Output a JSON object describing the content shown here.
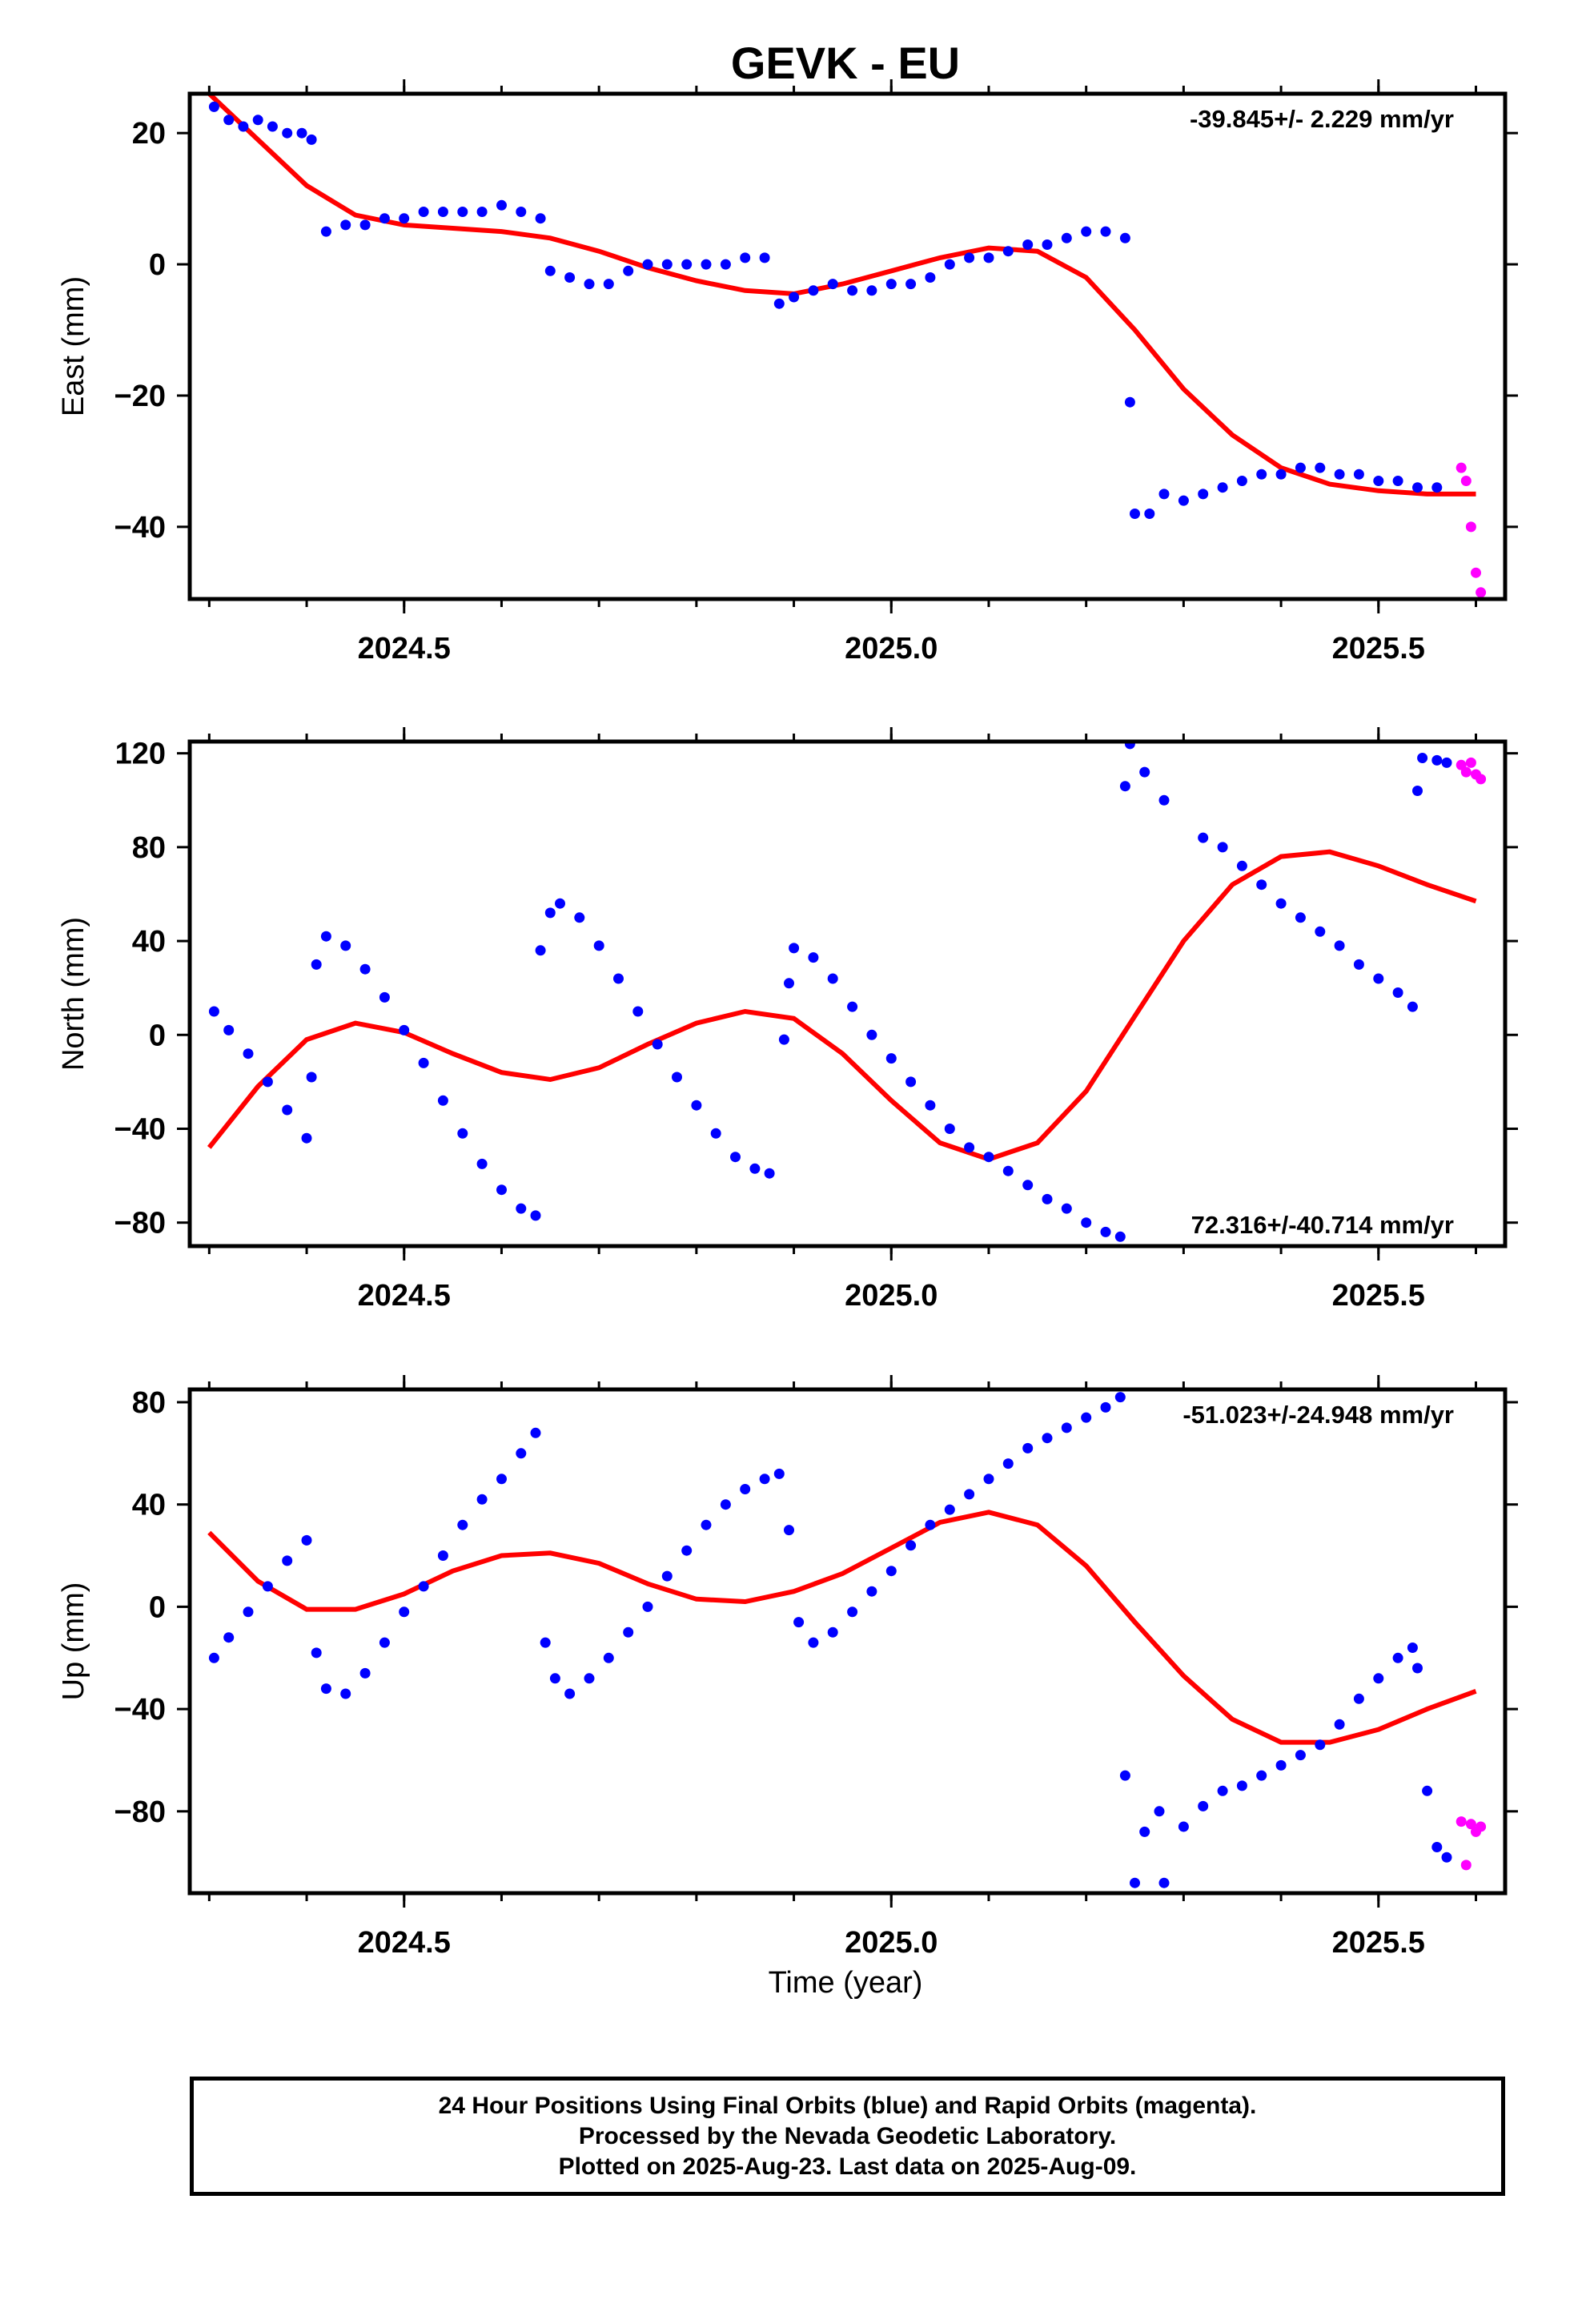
{
  "title": "GEVK - EU",
  "xlabel": "Time (year)",
  "footer": {
    "line1": "24 Hour Positions Using Final Orbits (blue) and Rapid Orbits (magenta).",
    "line2": "Processed by the Nevada Geodetic Laboratory.",
    "line3": "Plotted on 2025-Aug-23. Last data on 2025-Aug-09."
  },
  "colors": {
    "final": "#0000ff",
    "rapid": "#ff00ff",
    "fit": "#ff0000"
  },
  "chart_data": [
    {
      "type": "scatter",
      "ylabel": "East (mm)",
      "rate": "-39.845+/- 2.229 mm/yr",
      "xlim": [
        2024.28,
        2025.63
      ],
      "ylim": [
        -51,
        26
      ],
      "xticks": [
        2024.5,
        2025.0,
        2025.5
      ],
      "xtick_labels": [
        "2024.5",
        "2025.0",
        "2025.5"
      ],
      "yticks": [
        20,
        0,
        -20,
        -40
      ],
      "ytick_labels": [
        "20",
        "0",
        "−20",
        "−40"
      ],
      "series": [
        {
          "role": "final",
          "x": [
            2024.305,
            2024.32,
            2024.335,
            2024.35,
            2024.365,
            2024.38,
            2024.395,
            2024.405,
            2024.42,
            2024.44,
            2024.46,
            2024.48,
            2024.5,
            2024.52,
            2024.54,
            2024.56,
            2024.58,
            2024.6,
            2024.62,
            2024.64,
            2024.65,
            2024.67,
            2024.69,
            2024.71,
            2024.73,
            2024.75,
            2024.77,
            2024.79,
            2024.81,
            2024.83,
            2024.85,
            2024.87,
            2024.885,
            2024.9,
            2024.92,
            2024.94,
            2024.96,
            2024.98,
            2025.0,
            2025.02,
            2025.04,
            2025.06,
            2025.08,
            2025.1,
            2025.12,
            2025.14,
            2025.16,
            2025.18,
            2025.2,
            2025.22,
            2025.24,
            2025.245,
            2025.25,
            2025.265,
            2025.28,
            2025.3,
            2025.32,
            2025.34,
            2025.36,
            2025.38,
            2025.4,
            2025.42,
            2025.44,
            2025.46,
            2025.48,
            2025.5,
            2025.52,
            2025.54,
            2025.56
          ],
          "y": [
            24,
            22,
            21,
            22,
            21,
            20,
            20,
            19,
            5,
            6,
            6,
            7,
            7,
            8,
            8,
            8,
            8,
            9,
            8,
            7,
            -1,
            -2,
            -3,
            -3,
            -1,
            0,
            0,
            0,
            0,
            0,
            1,
            1,
            -6,
            -5,
            -4,
            -3,
            -4,
            -4,
            -3,
            -3,
            -2,
            0,
            1,
            1,
            2,
            3,
            3,
            4,
            5,
            5,
            4,
            -21,
            -38,
            -38,
            -35,
            -36,
            -35,
            -34,
            -33,
            -32,
            -32,
            -31,
            -31,
            -32,
            -32,
            -33,
            -33,
            -34,
            -34
          ]
        },
        {
          "role": "rapid",
          "x": [
            2025.585,
            2025.59,
            2025.595,
            2025.6,
            2025.605
          ],
          "y": [
            -31,
            -33,
            -40,
            -47,
            -50
          ]
        },
        {
          "role": "fit",
          "x": [
            2024.3,
            2024.35,
            2024.4,
            2024.45,
            2024.5,
            2024.55,
            2024.6,
            2024.65,
            2024.7,
            2024.75,
            2024.8,
            2024.85,
            2024.9,
            2024.95,
            2025.0,
            2025.05,
            2025.1,
            2025.15,
            2025.2,
            2025.25,
            2025.3,
            2025.35,
            2025.4,
            2025.45,
            2025.5,
            2025.55,
            2025.6
          ],
          "y": [
            26,
            19,
            12,
            7.5,
            6,
            5.5,
            5,
            4,
            2,
            -0.5,
            -2.5,
            -4,
            -4.5,
            -3,
            -1,
            1,
            2.5,
            2,
            -2,
            -10,
            -19,
            -26,
            -31,
            -33.5,
            -34.5,
            -35,
            -35
          ]
        }
      ]
    },
    {
      "type": "scatter",
      "ylabel": "North (mm)",
      "rate": "72.316+/-40.714 mm/yr",
      "xlim": [
        2024.28,
        2025.63
      ],
      "ylim": [
        -90,
        125
      ],
      "xticks": [
        2024.5,
        2025.0,
        2025.5
      ],
      "xtick_labels": [
        "2024.5",
        "2025.0",
        "2025.5"
      ],
      "yticks": [
        120,
        80,
        40,
        0,
        -40,
        -80
      ],
      "ytick_labels": [
        "120",
        "80",
        "40",
        "0",
        "−40",
        "−80"
      ],
      "series": [
        {
          "role": "final",
          "x": [
            2024.305,
            2024.32,
            2024.34,
            2024.36,
            2024.38,
            2024.4,
            2024.405,
            2024.41,
            2024.42,
            2024.44,
            2024.46,
            2024.48,
            2024.5,
            2024.52,
            2024.54,
            2024.56,
            2024.58,
            2024.6,
            2024.62,
            2024.635,
            2024.64,
            2024.65,
            2024.66,
            2024.68,
            2024.7,
            2024.72,
            2024.74,
            2024.76,
            2024.78,
            2024.8,
            2024.82,
            2024.84,
            2024.86,
            2024.875,
            2024.89,
            2024.895,
            2024.9,
            2024.92,
            2024.94,
            2024.96,
            2024.98,
            2025.0,
            2025.02,
            2025.04,
            2025.06,
            2025.08,
            2025.1,
            2025.12,
            2025.14,
            2025.16,
            2025.18,
            2025.2,
            2025.22,
            2025.235,
            2025.24,
            2025.245,
            2025.26,
            2025.28,
            2025.32,
            2025.34,
            2025.36,
            2025.38,
            2025.4,
            2025.42,
            2025.44,
            2025.46,
            2025.48,
            2025.5,
            2025.52,
            2025.535,
            2025.54,
            2025.545,
            2025.56,
            2025.57
          ],
          "y": [
            10,
            2,
            -8,
            -20,
            -32,
            -44,
            -18,
            30,
            42,
            38,
            28,
            16,
            2,
            -12,
            -28,
            -42,
            -55,
            -66,
            -74,
            -77,
            36,
            52,
            56,
            50,
            38,
            24,
            10,
            -4,
            -18,
            -30,
            -42,
            -52,
            -57,
            -59,
            -2,
            22,
            37,
            33,
            24,
            12,
            0,
            -10,
            -20,
            -30,
            -40,
            -48,
            -52,
            -58,
            -64,
            -70,
            -74,
            -80,
            -84,
            -86,
            106,
            124,
            112,
            100,
            84,
            80,
            72,
            64,
            56,
            50,
            44,
            38,
            30,
            24,
            18,
            12,
            104,
            118,
            117,
            116
          ]
        },
        {
          "role": "rapid",
          "x": [
            2025.585,
            2025.59,
            2025.595,
            2025.6,
            2025.605
          ],
          "y": [
            115,
            112,
            116,
            111,
            109
          ]
        },
        {
          "role": "fit",
          "x": [
            2024.3,
            2024.35,
            2024.4,
            2024.45,
            2024.5,
            2024.55,
            2024.6,
            2024.65,
            2024.7,
            2024.75,
            2024.8,
            2024.85,
            2024.9,
            2024.95,
            2025.0,
            2025.05,
            2025.1,
            2025.15,
            2025.2,
            2025.25,
            2025.3,
            2025.35,
            2025.4,
            2025.45,
            2025.5,
            2025.55,
            2025.6
          ],
          "y": [
            -48,
            -22,
            -2,
            5,
            1,
            -8,
            -16,
            -19,
            -14,
            -4,
            5,
            10,
            7,
            -8,
            -28,
            -46,
            -53,
            -46,
            -24,
            8,
            40,
            64,
            76,
            78,
            72,
            64,
            57
          ]
        }
      ]
    },
    {
      "type": "scatter",
      "ylabel": "Up (mm)",
      "rate": "-51.023+/-24.948 mm/yr",
      "xlim": [
        2024.28,
        2025.63
      ],
      "ylim": [
        -112,
        85
      ],
      "xticks": [
        2024.5,
        2025.0,
        2025.5
      ],
      "xtick_labels": [
        "2024.5",
        "2025.0",
        "2025.5"
      ],
      "yticks": [
        80,
        40,
        0,
        -40,
        -80
      ],
      "ytick_labels": [
        "80",
        "40",
        "0",
        "−40",
        "−80"
      ],
      "series": [
        {
          "role": "final",
          "x": [
            2024.305,
            2024.32,
            2024.34,
            2024.36,
            2024.38,
            2024.4,
            2024.41,
            2024.42,
            2024.44,
            2024.46,
            2024.48,
            2024.5,
            2024.52,
            2024.54,
            2024.56,
            2024.58,
            2024.6,
            2024.62,
            2024.635,
            2024.645,
            2024.655,
            2024.67,
            2024.69,
            2024.71,
            2024.73,
            2024.75,
            2024.77,
            2024.79,
            2024.81,
            2024.83,
            2024.85,
            2024.87,
            2024.885,
            2024.895,
            2024.905,
            2024.92,
            2024.94,
            2024.96,
            2024.98,
            2025.0,
            2025.02,
            2025.04,
            2025.06,
            2025.08,
            2025.1,
            2025.12,
            2025.14,
            2025.16,
            2025.18,
            2025.2,
            2025.22,
            2025.235,
            2025.24,
            2025.25,
            2025.26,
            2025.275,
            2025.28,
            2025.3,
            2025.32,
            2025.34,
            2025.36,
            2025.38,
            2025.4,
            2025.42,
            2025.44,
            2025.46,
            2025.48,
            2025.5,
            2025.52,
            2025.535,
            2025.54,
            2025.55,
            2025.56,
            2025.57
          ],
          "y": [
            -20,
            -12,
            -2,
            8,
            18,
            26,
            -18,
            -32,
            -34,
            -26,
            -14,
            -2,
            8,
            20,
            32,
            42,
            50,
            60,
            68,
            -14,
            -28,
            -34,
            -28,
            -20,
            -10,
            0,
            12,
            22,
            32,
            40,
            46,
            50,
            52,
            30,
            -6,
            -14,
            -10,
            -2,
            6,
            14,
            24,
            32,
            38,
            44,
            50,
            56,
            62,
            66,
            70,
            74,
            78,
            82,
            -66,
            -108,
            -88,
            -80,
            -108,
            -86,
            -78,
            -72,
            -70,
            -66,
            -62,
            -58,
            -54,
            -46,
            -36,
            -28,
            -20,
            -16,
            -24,
            -72,
            -94,
            -98
          ]
        },
        {
          "role": "rapid",
          "x": [
            2025.585,
            2025.59,
            2025.595,
            2025.6,
            2025.605
          ],
          "y": [
            -84,
            -101,
            -85,
            -88,
            -86
          ]
        },
        {
          "role": "fit",
          "x": [
            2024.3,
            2024.35,
            2024.4,
            2024.45,
            2024.5,
            2024.55,
            2024.6,
            2024.65,
            2024.7,
            2024.75,
            2024.8,
            2024.85,
            2024.9,
            2024.95,
            2025.0,
            2025.05,
            2025.1,
            2025.15,
            2025.2,
            2025.25,
            2025.3,
            2025.35,
            2025.4,
            2025.45,
            2025.5,
            2025.55,
            2025.6
          ],
          "y": [
            29,
            10,
            -1,
            -1,
            5,
            14,
            20,
            21,
            17,
            9,
            3,
            2,
            6,
            13,
            23,
            33,
            37,
            32,
            16,
            -6,
            -27,
            -44,
            -53,
            -53,
            -48,
            -40,
            -33
          ]
        }
      ]
    }
  ]
}
